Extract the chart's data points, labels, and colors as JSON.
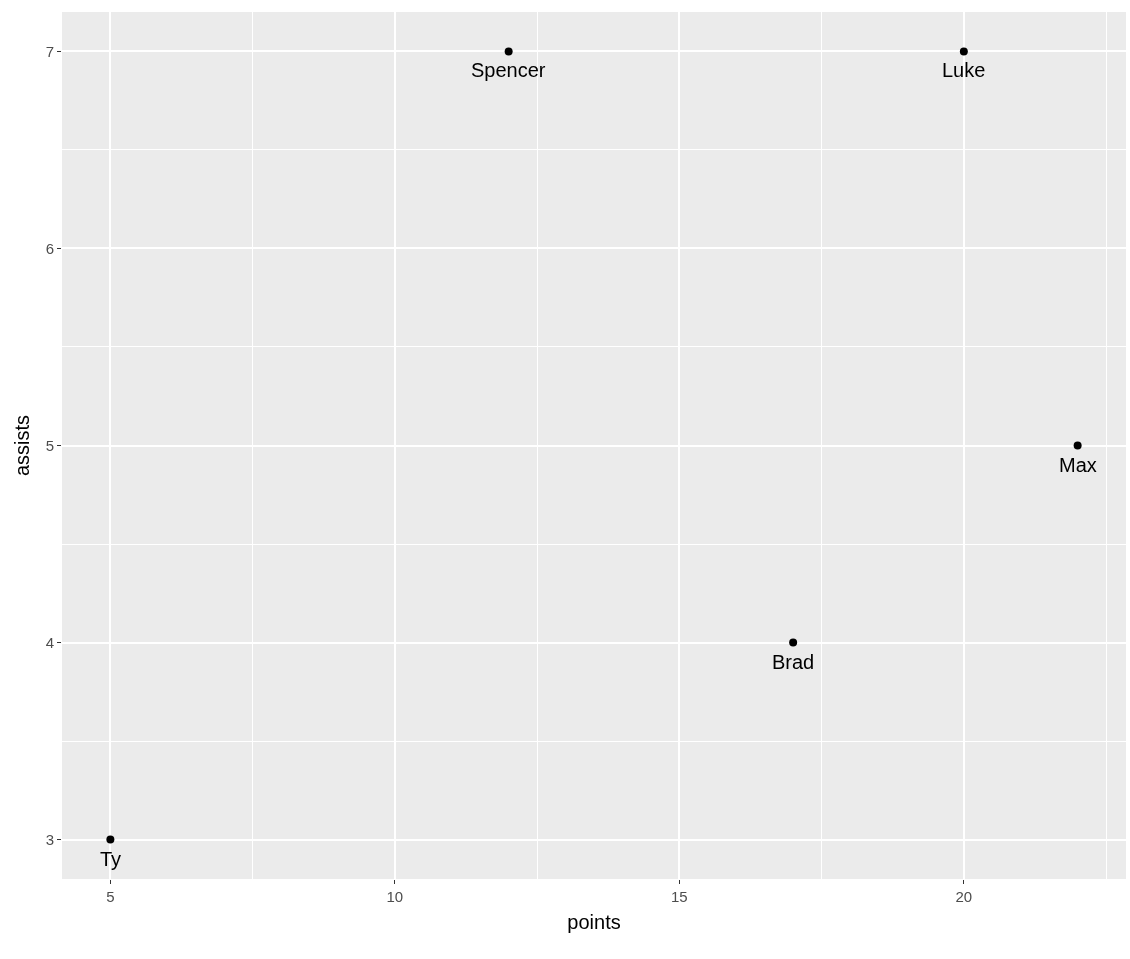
{
  "chart_data": {
    "type": "scatter",
    "xlabel": "points",
    "ylabel": "assists",
    "x": [
      5,
      12,
      17,
      20,
      22
    ],
    "series": [
      {
        "color": "#000000",
        "values": [
          3,
          7,
          4,
          7,
          5
        ]
      }
    ],
    "annotations": [
      {
        "text": "Ty",
        "x": 5,
        "y": 3
      },
      {
        "text": "Spencer",
        "x": 12,
        "y": 7
      },
      {
        "text": "Brad",
        "x": 17,
        "y": 4
      },
      {
        "text": "Luke",
        "x": 20,
        "y": 7
      },
      {
        "text": "Max",
        "x": 22,
        "y": 5
      }
    ],
    "xlim": [
      4.15,
      22.85
    ],
    "xticks": [
      5,
      10,
      15,
      20
    ],
    "ylim": [
      2.8,
      7.2
    ],
    "yticks": [
      3,
      4,
      5,
      6,
      7
    ],
    "grid": true,
    "marker": "circle"
  }
}
